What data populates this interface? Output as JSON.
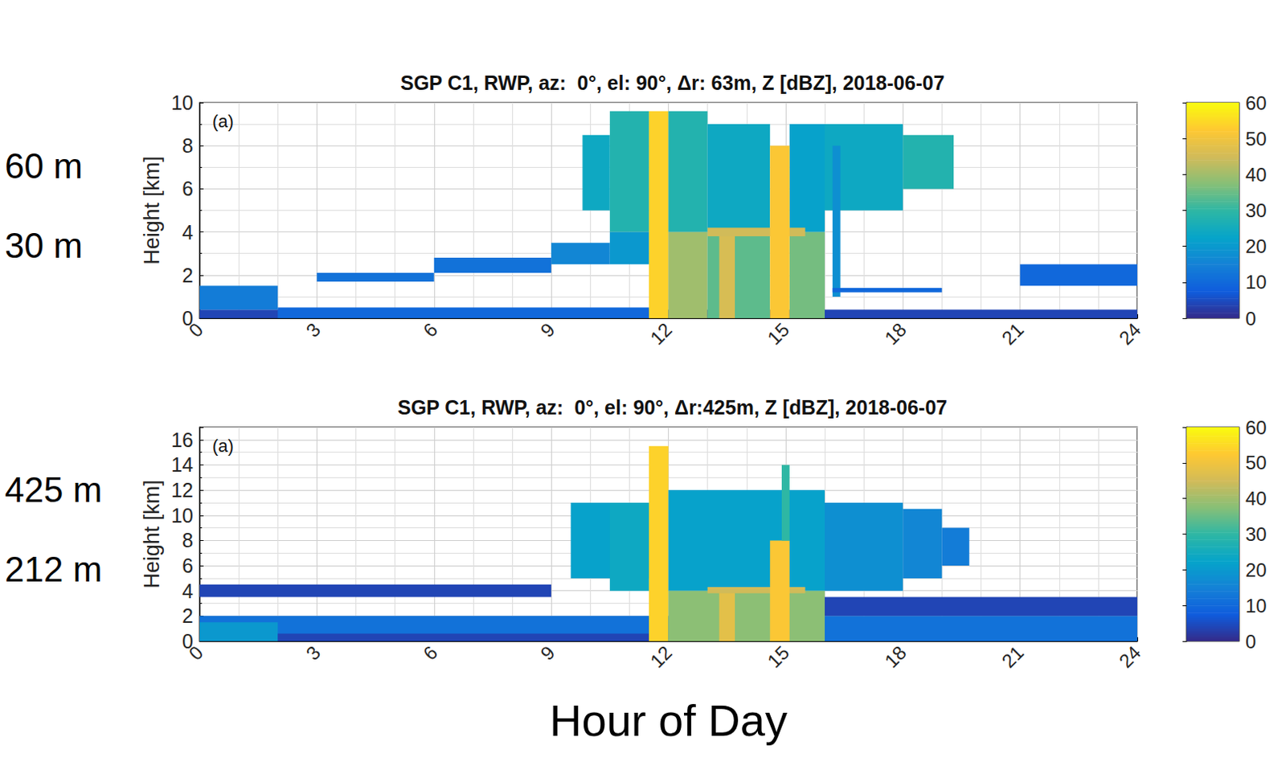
{
  "chart_data": [
    {
      "type": "heatmap",
      "title": "SGP C1, RWP, az:  0°, el: 90°, Δr: 63m, Z [dBZ], 2018-06-07",
      "panel_label": "(a)",
      "ylabel": "Height [km]",
      "side_labels": [
        "60 m",
        "30 m"
      ],
      "xlim": [
        0,
        24
      ],
      "xticks": [
        0,
        3,
        6,
        9,
        12,
        15,
        18,
        21,
        24
      ],
      "ylim": [
        0,
        10
      ],
      "yticks": [
        0,
        2,
        4,
        6,
        8,
        10
      ],
      "grid": true,
      "colorbar": {
        "lim": [
          0,
          60
        ],
        "ticks": [
          0,
          10,
          20,
          30,
          40,
          50,
          60
        ]
      },
      "cells": [
        [
          0,
          24,
          0,
          0.4,
          4
        ],
        [
          0,
          2,
          0.4,
          1.5,
          14
        ],
        [
          2,
          11.5,
          0,
          0.5,
          10
        ],
        [
          3,
          6,
          1.7,
          2.1,
          12
        ],
        [
          6,
          9,
          2.1,
          2.8,
          12
        ],
        [
          9,
          10.5,
          2.5,
          3.5,
          16
        ],
        [
          10.5,
          11.5,
          2.5,
          4,
          20
        ],
        [
          9.8,
          10.5,
          5,
          8.5,
          24
        ],
        [
          10.5,
          11.5,
          4,
          9.6,
          28
        ],
        [
          11.5,
          12,
          0,
          9.6,
          54
        ],
        [
          12,
          13,
          0,
          4,
          40
        ],
        [
          13,
          14.6,
          0,
          4,
          34
        ],
        [
          13.3,
          13.7,
          0,
          4,
          46
        ],
        [
          15.1,
          16,
          0,
          4,
          36
        ],
        [
          12,
          13,
          4,
          9.6,
          28
        ],
        [
          13,
          14.6,
          4,
          9,
          24
        ],
        [
          15.1,
          16,
          4,
          9,
          22
        ],
        [
          13,
          15.5,
          3.8,
          4.2,
          45
        ],
        [
          14.6,
          15.1,
          0,
          8,
          52
        ],
        [
          16,
          18,
          5,
          9,
          24
        ],
        [
          16.2,
          16.4,
          1,
          8,
          18
        ],
        [
          18,
          19.3,
          6,
          8.5,
          28
        ],
        [
          16.2,
          19,
          1.2,
          1.4,
          10
        ],
        [
          21,
          24,
          1.5,
          2.5,
          10
        ]
      ]
    },
    {
      "type": "heatmap",
      "title": "SGP C1, RWP, az:  0°, el: 90°, Δr:425m, Z [dBZ], 2018-06-07",
      "panel_label": "(a)",
      "ylabel": "Height [km]",
      "xlabel": "Hour of Day",
      "side_labels": [
        "425 m",
        "212 m"
      ],
      "xlim": [
        0,
        24
      ],
      "xticks": [
        0,
        3,
        6,
        9,
        12,
        15,
        18,
        21,
        24
      ],
      "ylim": [
        0,
        17
      ],
      "yticks": [
        0,
        2,
        4,
        6,
        8,
        10,
        12,
        14,
        16
      ],
      "grid": true,
      "colorbar": {
        "lim": [
          0,
          60
        ],
        "ticks": [
          0,
          10,
          20,
          30,
          40,
          50,
          60
        ]
      },
      "cells": [
        [
          0,
          24,
          0,
          2,
          12
        ],
        [
          0,
          2,
          0,
          1.5,
          20
        ],
        [
          2,
          11.5,
          0,
          0.6,
          4
        ],
        [
          0,
          9,
          3.5,
          4.5,
          4
        ],
        [
          9.5,
          11.5,
          5,
          11,
          22
        ],
        [
          10.5,
          11.5,
          4,
          11,
          24
        ],
        [
          11.5,
          12,
          0,
          15.5,
          54
        ],
        [
          12,
          16,
          4,
          12,
          22
        ],
        [
          12,
          16,
          0,
          4,
          38
        ],
        [
          13.3,
          13.7,
          0,
          4,
          48
        ],
        [
          13,
          15.5,
          3.8,
          4.3,
          45
        ],
        [
          14.6,
          15.1,
          0,
          8,
          52
        ],
        [
          14.9,
          15.1,
          8,
          14,
          30
        ],
        [
          16,
          18,
          4,
          11,
          18
        ],
        [
          18,
          19,
          5,
          10.5,
          16
        ],
        [
          19,
          19.7,
          6,
          9,
          14
        ],
        [
          16,
          24,
          2,
          3.5,
          4
        ]
      ]
    }
  ]
}
